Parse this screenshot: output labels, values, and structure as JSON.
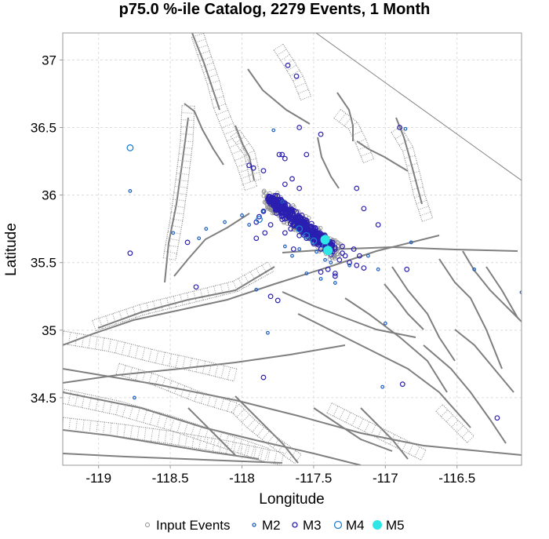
{
  "chart_data": {
    "type": "scatter",
    "title": "p75.0 %-ile Catalog, 2279 Events, 1 Month",
    "xlabel": "Longitude",
    "ylabel": "Latitude",
    "xlim": [
      -119.25,
      -116.05
    ],
    "ylim": [
      34.0,
      37.2
    ],
    "x_ticks": [
      {
        "value": -119,
        "label": "-119"
      },
      {
        "value": -118.5,
        "label": "-118.5"
      },
      {
        "value": -118,
        "label": "-118"
      },
      {
        "value": -117.5,
        "label": "-117.5"
      },
      {
        "value": -117,
        "label": "-117"
      },
      {
        "value": -116.5,
        "label": "-116.5"
      }
    ],
    "y_ticks": [
      {
        "value": 34.5,
        "label": "34.5"
      },
      {
        "value": 35,
        "label": "35"
      },
      {
        "value": 35.5,
        "label": "35.5"
      },
      {
        "value": 36,
        "label": "36"
      },
      {
        "value": 36.5,
        "label": "36.5"
      },
      {
        "value": 37,
        "label": "37"
      }
    ],
    "grid": true,
    "legend_position": "bottom",
    "legend": [
      "Input Events",
      "M2",
      "M3",
      "M4",
      "M5"
    ],
    "colors": {
      "input": "#8c8c8c",
      "m2": "#1f5fbf",
      "m3": "#2a1fb0",
      "m4": "#1e7fd0",
      "m5": "#2ee6e6",
      "faults": "#808080"
    },
    "series": [
      {
        "name": "M3",
        "x": [
          -117.8,
          -117.75,
          -117.72,
          -117.68,
          -117.65,
          -117.6,
          -117.58,
          -117.55,
          -117.52,
          -117.5,
          -117.48,
          -117.45,
          -117.42,
          -117.78,
          -117.7,
          -117.62,
          -117.57,
          -117.53,
          -117.47,
          -117.43,
          -117.4,
          -117.35,
          -117.3,
          -117.28,
          -117.82,
          -117.85,
          -117.88,
          -117.9,
          -117.66,
          -117.6,
          -117.55,
          -117.5,
          -117.45,
          -117.38,
          -117.32,
          -117.25,
          -117.2,
          -117.15,
          -117.76,
          -117.72,
          -117.7,
          -117.64,
          -117.8,
          -117.84,
          -117.9,
          -117.7,
          -117.65,
          -117.6,
          -117.3,
          -117.22,
          -117.18,
          -117.4,
          -117.35,
          -118.32,
          -118.38,
          -117.95,
          -117.92,
          -117.85,
          -117.45,
          -117.6,
          -118.78,
          -117.74,
          -117.72,
          -117.7,
          -117.55,
          -117.2,
          -116.85,
          -116.9,
          -117.15,
          -117.05,
          -117.45,
          -117.68,
          -117.62,
          -117.8,
          -117.75,
          -117.55,
          -117.35,
          -116.88,
          -116.22,
          -117.85
        ],
        "y": [
          35.95,
          35.9,
          35.88,
          35.85,
          35.82,
          35.78,
          35.76,
          35.74,
          35.72,
          35.7,
          35.68,
          35.66,
          35.64,
          35.92,
          35.86,
          35.8,
          35.77,
          35.73,
          35.69,
          35.65,
          35.62,
          35.6,
          35.57,
          35.55,
          35.97,
          35.88,
          35.84,
          35.8,
          35.75,
          35.7,
          35.68,
          35.64,
          35.6,
          35.56,
          35.52,
          35.5,
          35.48,
          35.46,
          35.9,
          35.82,
          35.72,
          35.6,
          35.78,
          35.72,
          35.68,
          36.08,
          36.12,
          36.05,
          35.62,
          35.6,
          35.55,
          35.45,
          35.42,
          35.32,
          35.65,
          36.22,
          36.2,
          36.18,
          36.45,
          36.5,
          35.57,
          36.3,
          36.3,
          36.27,
          36.3,
          36.05,
          35.45,
          36.5,
          35.9,
          35.78,
          35.43,
          36.96,
          36.88,
          35.25,
          35.22,
          35.8,
          35.4,
          34.6,
          34.35,
          34.65
        ]
      },
      {
        "name": "M2",
        "x": [
          -118.78,
          -118.48,
          -118.3,
          -118.25,
          -117.95,
          -117.85,
          -117.72,
          -117.6,
          -117.48,
          -117.42,
          -117.38,
          -117.25,
          -117.12,
          -117.05,
          -117.02,
          -116.82,
          -116.38,
          -116.05,
          -116.03,
          -118.75,
          -117.0,
          -117.35,
          -117.45,
          -117.55,
          -117.65,
          -117.7,
          -117.78,
          -117.82,
          -118.0,
          -118.12,
          -117.9,
          -116.86
        ],
        "y": [
          36.03,
          35.72,
          35.68,
          35.75,
          35.78,
          35.88,
          35.95,
          35.6,
          35.58,
          35.52,
          35.5,
          35.48,
          35.55,
          35.45,
          34.58,
          35.65,
          35.45,
          35.28,
          35.29,
          34.5,
          35.05,
          35.35,
          35.38,
          35.42,
          35.55,
          35.62,
          36.48,
          34.98,
          35.85,
          35.8,
          35.3,
          36.49
        ]
      },
      {
        "name": "M4",
        "x": [
          -118.78,
          -117.55,
          -117.6,
          -117.88,
          -117.5,
          -117.42
        ],
        "y": [
          36.35,
          35.7,
          35.75,
          35.82,
          35.66,
          35.62
        ]
      },
      {
        "name": "M5",
        "x": [
          -117.42,
          -117.4
        ],
        "y": [
          35.67,
          35.59
        ]
      }
    ]
  }
}
